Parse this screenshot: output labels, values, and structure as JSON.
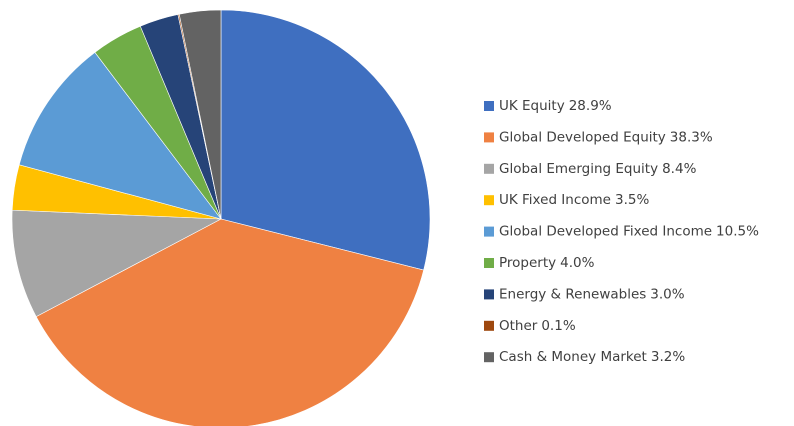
{
  "chart_data": {
    "type": "pie",
    "categories": [
      "UK Equity",
      "Global Developed Equity",
      "Global Emerging Equity",
      "UK Fixed Income",
      "Global Developed Fixed Income",
      "Property",
      "Energy & Renewables",
      "Other",
      "Cash & Money Market"
    ],
    "values": [
      28.9,
      38.3,
      8.4,
      3.5,
      10.5,
      4.0,
      3.0,
      0.1,
      3.2
    ],
    "value_labels": [
      "28.9%",
      "38.3%",
      "8.4%",
      "3.5%",
      "10.5%",
      "4.0%",
      "3.0%",
      "0.1%",
      "3.2%"
    ],
    "colors": [
      "#3f6fc0",
      "#ef8142",
      "#a5a5a5",
      "#ffc000",
      "#5b9bd5",
      "#70ad47",
      "#264478",
      "#9e480e",
      "#636363"
    ],
    "legend": "right"
  }
}
